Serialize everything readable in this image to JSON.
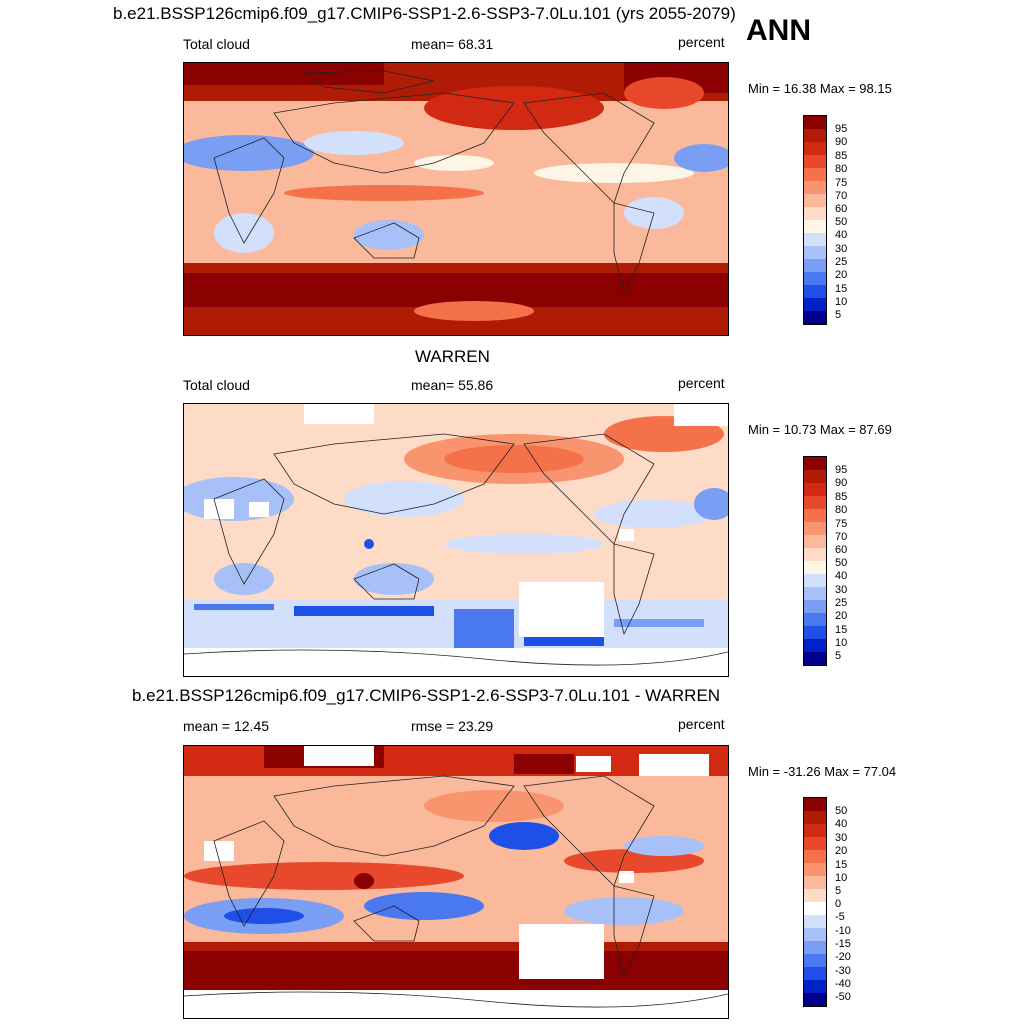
{
  "season": "ANN",
  "colors": {
    "abs_scale": [
      "#00008b",
      "#0020c8",
      "#1e4fe6",
      "#4a78f0",
      "#7a9ef4",
      "#a7c0f8",
      "#d2e0fb",
      "#fdf5e6",
      "#fddbc7",
      "#fbb99b",
      "#f9956e",
      "#f4714a",
      "#e8492c",
      "#d22a12",
      "#b01b06",
      "#8b0000"
    ],
    "diff_scale": [
      "#00008b",
      "#0020c8",
      "#1e4fe6",
      "#4a78f0",
      "#7a9ef4",
      "#a7c0f8",
      "#d2e0fb",
      "#ffffff",
      "#fdf5e6",
      "#fddbc7",
      "#fbb99b",
      "#f9956e",
      "#f4714a",
      "#e8492c",
      "#d22a12",
      "#b01b06",
      "#8b0000"
    ]
  },
  "panels": [
    {
      "title": "b.e21.BSSP126cmip6.f09_g17.CMIP6-SSP1-2.6-SSP3-7.0Lu.101 (yrs 2055-2079)",
      "left_label": "Total cloud",
      "center_label": "mean=  68.31",
      "units": "percent",
      "minmax": "Min =  16.38 Max =  98.15",
      "levels": [
        "95",
        "90",
        "85",
        "80",
        "75",
        "70",
        "60",
        "50",
        "40",
        "30",
        "25",
        "20",
        "15",
        "10",
        "5"
      ]
    },
    {
      "title": "WARREN",
      "left_label": "Total cloud",
      "center_label": "mean=  55.86",
      "units": "percent",
      "minmax": "Min =  10.73 Max =  87.69",
      "levels": [
        "95",
        "90",
        "85",
        "80",
        "75",
        "70",
        "60",
        "50",
        "40",
        "30",
        "25",
        "20",
        "15",
        "10",
        "5"
      ]
    },
    {
      "title": "b.e21.BSSP126cmip6.f09_g17.CMIP6-SSP1-2.6-SSP3-7.0Lu.101 - WARREN",
      "left_label": "mean =  12.45",
      "center_label": "rmse =  23.29",
      "units": "percent",
      "minmax": "Min = -31.26 Max =  77.04",
      "levels": [
        "50",
        "40",
        "30",
        "20",
        "15",
        "10",
        "5",
        "0",
        "-5",
        "-10",
        "-15",
        "-20",
        "-30",
        "-40",
        "-50"
      ]
    }
  ]
}
